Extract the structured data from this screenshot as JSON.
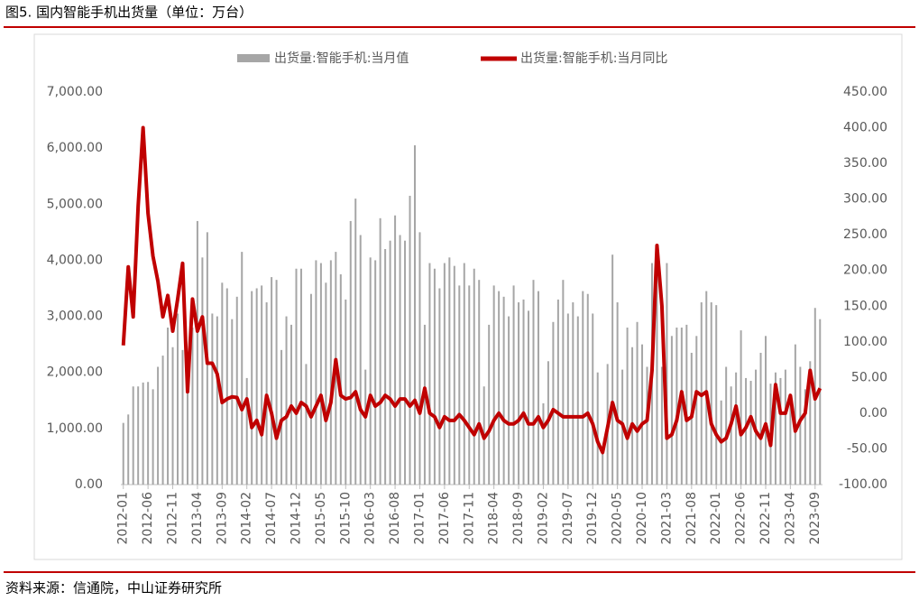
{
  "chart_data": {
    "type": "bar",
    "title": "图5. 国内智能手机出货量（单位：万台）",
    "source": "资料来源：信通院，中山证券研究所",
    "categories": [
      "2012-01",
      null,
      null,
      null,
      null,
      "2012-06",
      null,
      null,
      null,
      null,
      "2012-11",
      null,
      null,
      null,
      null,
      "2013-04",
      null,
      null,
      null,
      null,
      "2013-09",
      null,
      null,
      null,
      null,
      "2014-02",
      null,
      null,
      null,
      null,
      "2014-07",
      null,
      null,
      null,
      null,
      "2014-12",
      null,
      null,
      null,
      null,
      "2015-05",
      null,
      null,
      null,
      null,
      "2015-10",
      null,
      null,
      null,
      null,
      "2016-03",
      null,
      null,
      null,
      null,
      "2016-08",
      null,
      null,
      null,
      null,
      "2017-01",
      null,
      null,
      null,
      null,
      "2017-06",
      null,
      null,
      null,
      null,
      "2017-11",
      null,
      null,
      null,
      null,
      "2018-04",
      null,
      null,
      null,
      null,
      "2018-09",
      null,
      null,
      null,
      null,
      "2019-02",
      null,
      null,
      null,
      null,
      "2019-07",
      null,
      null,
      null,
      null,
      "2019-12",
      null,
      null,
      null,
      null,
      "2020-05",
      null,
      null,
      null,
      null,
      "2020-10",
      null,
      null,
      null,
      null,
      "2021-03",
      null,
      null,
      null,
      null,
      "2021-08",
      null,
      null,
      null,
      null,
      "2022-01",
      null,
      null,
      null,
      null,
      "2022-06",
      null,
      null,
      null,
      null,
      "2022-11",
      null,
      null,
      null,
      null,
      "2023-04",
      null,
      null,
      null,
      null,
      "2023-09",
      null
    ],
    "series": [
      {
        "name": "出货量:智能手机:当月值",
        "type": "bar",
        "color": "#a6a6a6",
        "values": [
          1100,
          1250,
          1750,
          1750,
          1820,
          1830,
          1700,
          2100,
          2300,
          2800,
          2450,
          3050,
          2400,
          2350,
          2800,
          4700,
          4050,
          4500,
          3050,
          3000,
          3600,
          3500,
          2950,
          3350,
          4150,
          1900,
          3450,
          3500,
          3550,
          3250,
          3700,
          3650,
          2400,
          3000,
          2850,
          3850,
          3850,
          2150,
          3400,
          4000,
          3950,
          3600,
          4000,
          4150,
          3750,
          3300,
          4700,
          5100,
          4450,
          2050,
          4050,
          4000,
          4750,
          4200,
          4350,
          4800,
          4450,
          4350,
          5150,
          6050,
          4500,
          2850,
          3950,
          3850,
          3500,
          3950,
          4050,
          3900,
          3550,
          3950,
          3550,
          3850,
          3650,
          1750,
          2850,
          3550,
          3450,
          3350,
          3000,
          3550,
          3250,
          3300,
          3100,
          3650,
          3450,
          1450,
          2200,
          2900,
          3300,
          3650,
          3050,
          3250,
          3000,
          3450,
          3400,
          3050,
          2000,
          630,
          2150,
          4100,
          3250,
          2050,
          2800,
          2450,
          2900,
          2500,
          2100,
          3950,
          4100,
          2100,
          3950,
          2650,
          2800,
          2800,
          2850,
          2350,
          2650,
          3250,
          3450,
          3250,
          3200,
          1500,
          2100,
          1750,
          2000,
          2750,
          1900,
          1850,
          2050,
          2350,
          2650,
          1800,
          2000,
          1900,
          2050,
          1550,
          2500,
          2100,
          1700,
          2200,
          3150,
          2950
        ]
      },
      {
        "name": "出货量:智能手机:当月同比",
        "type": "line",
        "axis": "y2",
        "color": "#c00000",
        "values": [
          95,
          205,
          135,
          290,
          400,
          280,
          220,
          185,
          135,
          165,
          115,
          160,
          210,
          30,
          160,
          115,
          135,
          70,
          70,
          55,
          15,
          20,
          23,
          22,
          5,
          20,
          -20,
          -10,
          -30,
          25,
          0,
          -35,
          -10,
          -5,
          10,
          0,
          15,
          10,
          -5,
          10,
          25,
          -10,
          15,
          75,
          25,
          20,
          22,
          30,
          5,
          -5,
          25,
          10,
          15,
          25,
          20,
          10,
          20,
          20,
          10,
          18,
          0,
          35,
          0,
          -5,
          -20,
          -5,
          -10,
          -10,
          -2,
          -10,
          -20,
          -30,
          -15,
          -35,
          -25,
          -10,
          0,
          -10,
          -15,
          -15,
          -10,
          0,
          -15,
          -15,
          -5,
          -20,
          -10,
          5,
          0,
          -5,
          -5,
          -5,
          -5,
          -5,
          0,
          -15,
          -40,
          -55,
          -20,
          15,
          -10,
          -15,
          -35,
          -15,
          -25,
          -15,
          -10,
          60,
          235,
          150,
          -35,
          -30,
          -10,
          30,
          -10,
          -5,
          30,
          25,
          30,
          -15,
          -30,
          -40,
          -35,
          -15,
          10,
          -30,
          -20,
          -5,
          -25,
          -35,
          -15,
          -45,
          40,
          0,
          0,
          25,
          -25,
          -10,
          0,
          60,
          20,
          35
        ]
      }
    ],
    "ylim": [
      0,
      7000
    ],
    "yticks": [
      {
        "value": 0,
        "label": "0.00"
      },
      {
        "value": 1000,
        "label": "1,000.00"
      },
      {
        "value": 2000,
        "label": "2,000.00"
      },
      {
        "value": 3000,
        "label": "3,000.00"
      },
      {
        "value": 4000,
        "label": "4,000.00"
      },
      {
        "value": 5000,
        "label": "5,000.00"
      },
      {
        "value": 6000,
        "label": "6,000.00"
      },
      {
        "value": 7000,
        "label": "7,000.00"
      }
    ],
    "y2lim": [
      -100,
      450
    ],
    "y2ticks": [
      {
        "value": -100,
        "label": "-100.00"
      },
      {
        "value": -50,
        "label": "-50.00"
      },
      {
        "value": 0,
        "label": "0.00"
      },
      {
        "value": 50,
        "label": "50.00"
      },
      {
        "value": 100,
        "label": "100.00"
      },
      {
        "value": 150,
        "label": "150.00"
      },
      {
        "value": 200,
        "label": "200.00"
      },
      {
        "value": 250,
        "label": "250.00"
      },
      {
        "value": 300,
        "label": "300.00"
      },
      {
        "value": 350,
        "label": "350.00"
      },
      {
        "value": 400,
        "label": "400.00"
      },
      {
        "value": 450,
        "label": "450.00"
      }
    ],
    "legend": "top",
    "grid": false
  }
}
